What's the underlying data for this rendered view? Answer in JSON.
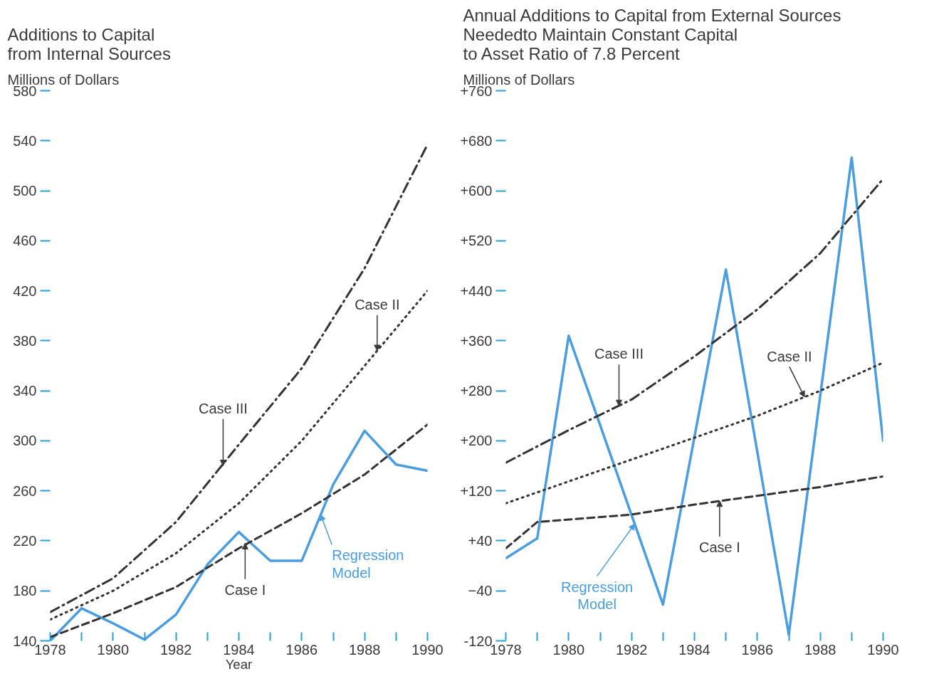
{
  "chart_data": [
    {
      "type": "line",
      "title": "Additions to Capital\nfrom Internal Sources",
      "ylabel": "Millions of Dollars",
      "xlabel": "Year",
      "grid": false,
      "marker": "none",
      "x": [
        1978,
        1979,
        1980,
        1981,
        1982,
        1983,
        1984,
        1985,
        1986,
        1987,
        1988,
        1989,
        1990
      ],
      "xlim": [
        1978,
        1990
      ],
      "xticks": [
        1978,
        {
          "value": 1979,
          "label": null
        },
        1980,
        {
          "value": 1981,
          "label": null
        },
        1982,
        {
          "value": 1983,
          "label": null
        },
        1984,
        {
          "value": 1985,
          "label": null
        },
        1986,
        {
          "value": 1987,
          "label": null
        },
        1988,
        {
          "value": 1989,
          "label": null
        },
        1990
      ],
      "ylim": [
        140,
        580
      ],
      "yticks": [
        140,
        180,
        220,
        260,
        300,
        340,
        380,
        420,
        460,
        500,
        540,
        580
      ],
      "series": [
        {
          "color": "#4a9de0",
          "line_style": "solid",
          "values": [
            140,
            166,
            154,
            141,
            161,
            201,
            227,
            204,
            204,
            265,
            308,
            281,
            276
          ]
        },
        {
          "color": "#333333",
          "line_style": "dashed",
          "x": [
            1978,
            1980,
            1982,
            1984,
            1986,
            1988,
            1990
          ],
          "values": [
            143,
            162,
            183,
            214,
            242,
            273,
            313
          ]
        },
        {
          "color": "#333333",
          "line_style": "dotted",
          "x": [
            1978,
            1980,
            1982,
            1984,
            1986,
            1988,
            1990
          ],
          "values": [
            157,
            180,
            210,
            250,
            300,
            360,
            420
          ]
        },
        {
          "color": "#333333",
          "line_style": "dashdot",
          "x": [
            1978,
            1980,
            1982,
            1984,
            1986,
            1988,
            1990
          ],
          "values": [
            163,
            190,
            235,
            297,
            358,
            438,
            537
          ]
        }
      ],
      "annotations": [
        {
          "text": "Case III",
          "x": 1983.5,
          "y": 280
        },
        {
          "text": "Case II",
          "x": 1988.4,
          "y": 372
        },
        {
          "text": "Case I",
          "x": 1984.2,
          "y": 218
        },
        {
          "text": "Regression\nModel",
          "x": 1986.6,
          "y": 241
        }
      ]
    },
    {
      "type": "line",
      "title": "Annual Additions to Capital from External Sources\nNeededto Maintain Constant Capital\nto Asset Ratio of 7.8 Percent",
      "ylabel": "Millions of Dollars",
      "grid": false,
      "marker": "none",
      "x": [
        1978,
        1979,
        1980,
        1981,
        1982,
        1983,
        1984,
        1985,
        1986,
        1987,
        1988,
        1989,
        1990
      ],
      "xlim": [
        1978,
        1990
      ],
      "xticks": [
        1978,
        {
          "value": 1979,
          "label": null
        },
        1980,
        {
          "value": 1981,
          "label": null
        },
        1982,
        {
          "value": 1983,
          "label": null
        },
        1984,
        {
          "value": 1985,
          "label": null
        },
        1986,
        {
          "value": 1987,
          "label": null
        },
        1988,
        {
          "value": 1989,
          "label": null
        },
        1990
      ],
      "ylim": [
        -120,
        760
      ],
      "yticks": [
        -120,
        {
          "value": -40,
          "label": "−40"
        },
        {
          "value": 40,
          "label": "+40"
        },
        {
          "value": 120,
          "label": "+120"
        },
        {
          "value": 200,
          "label": "+200"
        },
        {
          "value": 280,
          "label": "+280"
        },
        {
          "value": 360,
          "label": "+360"
        },
        {
          "value": 440,
          "label": "+440"
        },
        {
          "value": 520,
          "label": "+520"
        },
        {
          "value": 600,
          "label": "+600"
        },
        {
          "value": 680,
          "label": "+680"
        },
        {
          "value": 760,
          "label": "+760"
        }
      ],
      "series": [
        {
          "color": "#4a9de0",
          "line_style": "solid",
          "values": [
            12,
            44,
            368,
            225,
            81,
            -62,
            206,
            474,
            182,
            -110,
            272,
            653,
            200
          ]
        },
        {
          "color": "#333333",
          "line_style": "dashed",
          "x": [
            1978,
            1979,
            1982,
            1984,
            1986,
            1988,
            1990
          ],
          "values": [
            28,
            70,
            82,
            98,
            112,
            126,
            143
          ]
        },
        {
          "color": "#333333",
          "line_style": "dotted",
          "x": [
            1978,
            1980,
            1982,
            1984,
            1986,
            1988,
            1990
          ],
          "values": [
            100,
            135,
            170,
            205,
            240,
            280,
            325
          ]
        },
        {
          "color": "#333333",
          "line_style": "dashdot",
          "x": [
            1978,
            1980,
            1982,
            1984,
            1986,
            1988,
            1990
          ],
          "values": [
            165,
            217,
            266,
            335,
            410,
            500,
            619
          ]
        }
      ],
      "annotations": [
        {
          "text": "Case III",
          "x": 1981.6,
          "y": 256
        },
        {
          "text": "Case II",
          "x": 1987.5,
          "y": 270
        },
        {
          "text": "Case I",
          "x": 1984.8,
          "y": 104
        },
        {
          "text": "Regression\nModel",
          "x": 1982.1,
          "y": 67
        }
      ]
    }
  ]
}
